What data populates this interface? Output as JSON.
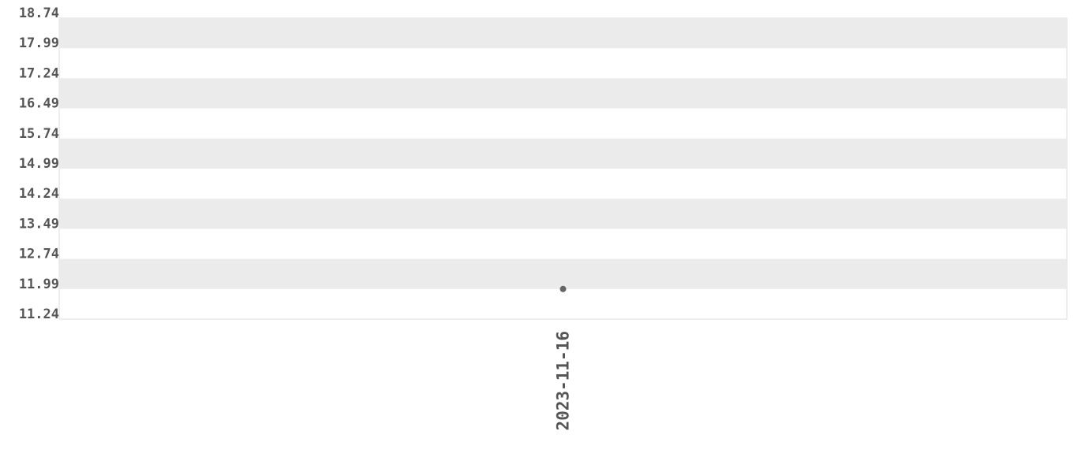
{
  "chart_data": {
    "type": "line",
    "categories": [
      "2023-11-16"
    ],
    "values": [
      11.99
    ],
    "color": "#666666",
    "ylim": [
      11.24,
      18.74
    ],
    "yticks": [
      11.24,
      11.99,
      12.74,
      13.49,
      14.24,
      14.99,
      15.74,
      16.49,
      17.24,
      17.99,
      18.74
    ],
    "grid": "bands"
  }
}
